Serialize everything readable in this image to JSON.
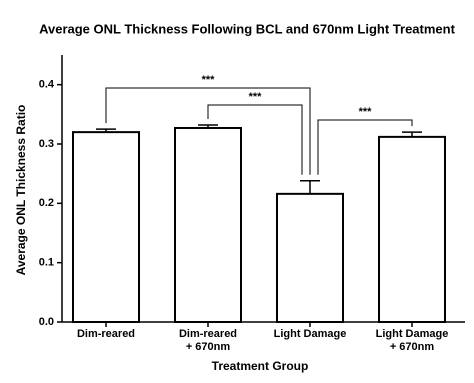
{
  "chart_data": {
    "type": "bar",
    "title": "Average ONL Thickness Following BCL and 670nm Light Treatment",
    "x_label": "Treatment Group",
    "y_label": "Average ONL Thickness Ratio",
    "categories": [
      "Dim-reared",
      "Dim-reared\n+ 670nm",
      "Light Damage",
      "Light Damage\n+ 670nm"
    ],
    "series": [
      {
        "values": [
          0.32,
          0.327,
          0.216,
          0.312
        ],
        "errors": [
          0.005,
          0.005,
          0.022,
          0.008
        ],
        "color": "#ffffff"
      }
    ],
    "ylim": [
      0,
      0.45
    ],
    "yticks": [
      {
        "value": 0,
        "label": "0.0"
      },
      0.1,
      0.2,
      0.3,
      0.4
    ],
    "comparisons": [
      {
        "from": 0,
        "to": 2,
        "label": "***"
      },
      {
        "from": 1,
        "to": 2,
        "label": "***"
      },
      {
        "from": 3,
        "to": 2,
        "label": "***"
      }
    ]
  }
}
